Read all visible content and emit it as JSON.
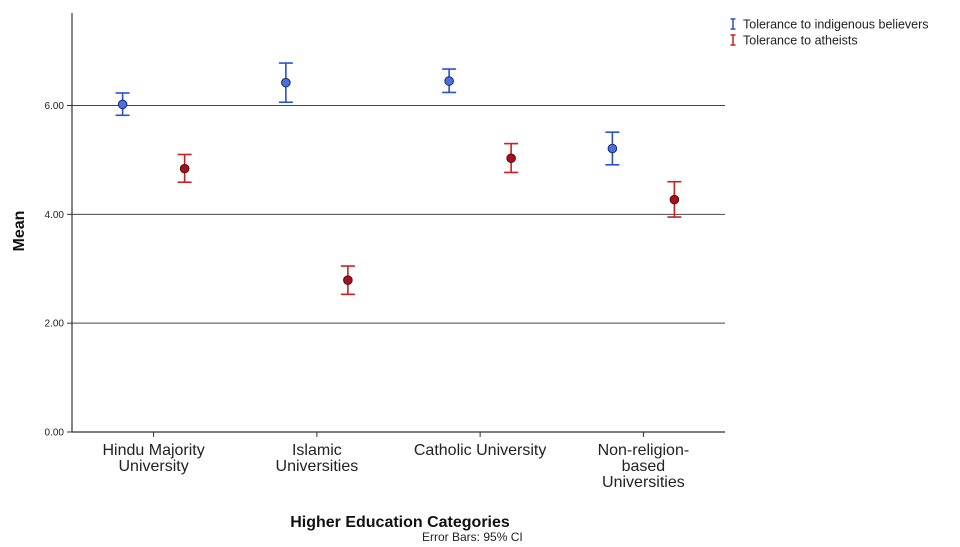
{
  "chart_data": {
    "type": "scatter",
    "ylabel": "Mean",
    "xlabel": "Higher Education Categories",
    "note": "Error Bars: 95% CI",
    "ylim": [
      0,
      7.7
    ],
    "yticks": [
      0,
      2,
      4,
      6
    ],
    "ytick_labels": [
      "0.00",
      "2.00",
      "4.00",
      "6.00"
    ],
    "grid": "horizontal",
    "legend_position": "top-right",
    "categories": [
      [
        "Hindu Majority",
        "University"
      ],
      [
        "Islamic",
        "Universities"
      ],
      [
        "Catholic University"
      ],
      [
        "Non-religion-",
        "based",
        "Universities"
      ]
    ],
    "series": [
      {
        "name": "Tolerance to indigenous believers",
        "color": "#2a4fd6",
        "marker_color": "#4a6fe0",
        "values": [
          6.02,
          6.42,
          6.45,
          5.21
        ],
        "ci_low": [
          5.82,
          6.06,
          6.24,
          4.91
        ],
        "ci_high": [
          6.23,
          6.78,
          6.67,
          5.51
        ]
      },
      {
        "name": "Tolerance to atheists",
        "color": "#cc1f1f",
        "marker_color": "#a3121c",
        "values": [
          4.84,
          2.79,
          5.03,
          4.27
        ],
        "ci_low": [
          4.59,
          2.53,
          4.77,
          3.95
        ],
        "ci_high": [
          5.1,
          3.05,
          5.3,
          4.6
        ]
      }
    ]
  }
}
